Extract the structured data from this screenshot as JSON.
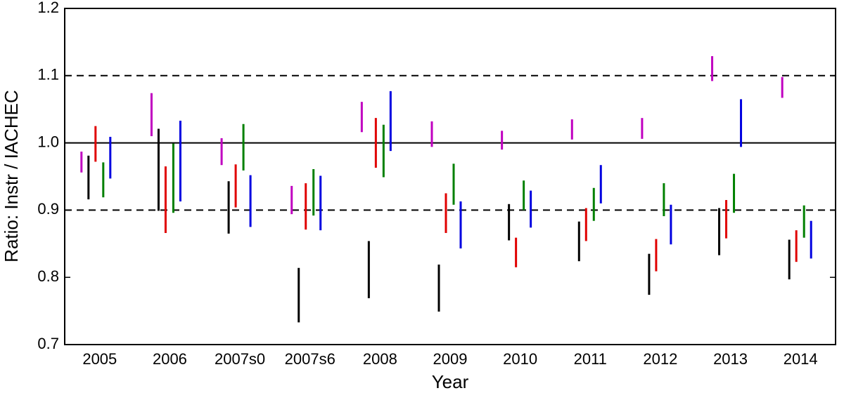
{
  "chart_data": {
    "type": "range",
    "x_label": "Year",
    "y_label": "Ratio: Instr / IACHEC",
    "categories": [
      "2005",
      "2006",
      "2007s0",
      "2007s6",
      "2008",
      "2009",
      "2010",
      "2011",
      "2012",
      "2013",
      "2014"
    ],
    "ylim": [
      0.7,
      1.2
    ],
    "yticks": [
      0.7,
      0.8,
      0.9,
      {
        "value": 1,
        "label": "1.0"
      },
      1.1,
      1.2
    ],
    "reference_lines": [
      {
        "value": 0.9,
        "style": "dashed"
      },
      {
        "value": 1,
        "style": "solid"
      },
      {
        "value": 1.1,
        "style": "dashed"
      }
    ],
    "series": [
      {
        "color": "#c000c0",
        "values": [
          [
            0.956,
            0.987
          ],
          [
            1.01,
            1.074
          ],
          [
            0.967,
            1.007
          ],
          [
            0.894,
            0.936
          ],
          [
            1.016,
            1.061
          ],
          [
            0.994,
            1.032
          ],
          [
            0.99,
            1.018
          ],
          [
            1.005,
            1.035
          ],
          [
            1.006,
            1.037
          ],
          [
            1.092,
            1.129
          ],
          [
            1.067,
            1.098
          ]
        ]
      },
      {
        "color": "#000000",
        "values": [
          [
            0.916,
            0.981
          ],
          [
            0.899,
            1.021
          ],
          [
            0.865,
            0.943
          ],
          [
            0.733,
            0.814
          ],
          [
            0.769,
            0.854
          ],
          [
            0.749,
            0.819
          ],
          [
            0.855,
            0.909
          ],
          [
            0.824,
            0.883
          ],
          [
            0.774,
            0.835
          ],
          [
            0.833,
            0.903
          ],
          [
            0.797,
            0.856
          ]
        ]
      },
      {
        "color": "#e00000",
        "values": [
          [
            0.972,
            1.025
          ],
          [
            0.866,
            0.965
          ],
          [
            0.904,
            0.968
          ],
          [
            0.871,
            0.94
          ],
          [
            0.963,
            1.037
          ],
          [
            0.866,
            0.925
          ],
          [
            0.815,
            0.859
          ],
          [
            0.854,
            0.903
          ],
          [
            0.809,
            0.857
          ],
          [
            0.858,
            0.915
          ],
          [
            0.823,
            0.87
          ]
        ]
      },
      {
        "color": "#008000",
        "values": [
          [
            0.919,
            0.971
          ],
          [
            0.896,
            0.999
          ],
          [
            0.959,
            1.028
          ],
          [
            0.892,
            0.961
          ],
          [
            0.949,
            1.027
          ],
          [
            0.908,
            0.969
          ],
          [
            0.9,
            0.944
          ],
          [
            0.884,
            0.933
          ],
          [
            0.891,
            0.94
          ],
          [
            0.896,
            0.954
          ],
          [
            0.859,
            0.907
          ]
        ]
      },
      {
        "color": "#0000e0",
        "values": [
          [
            0.947,
            1.009
          ],
          [
            0.913,
            1.033
          ],
          [
            0.875,
            0.952
          ],
          [
            0.87,
            0.951
          ],
          [
            0.988,
            1.077
          ],
          [
            0.843,
            0.913
          ],
          [
            0.874,
            0.929
          ],
          [
            0.91,
            0.967
          ],
          [
            0.849,
            0.908
          ],
          [
            0.994,
            1.065
          ],
          [
            0.828,
            0.884
          ]
        ]
      }
    ]
  }
}
